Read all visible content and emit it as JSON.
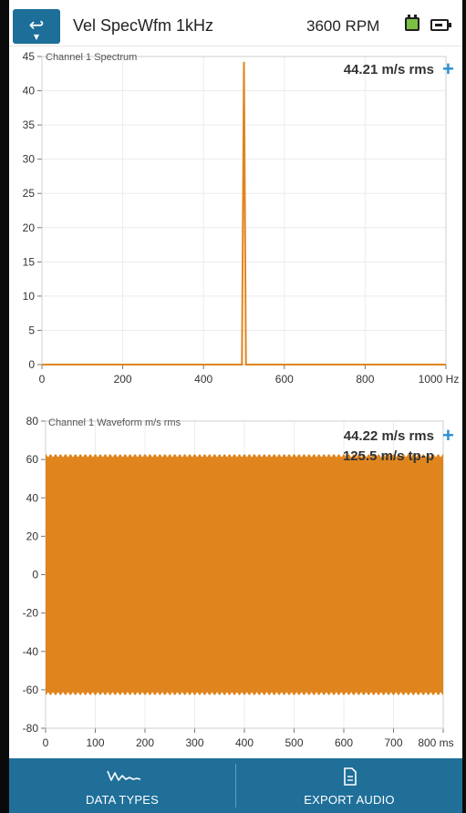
{
  "header": {
    "back_label": "↩",
    "title": "Vel SpecWfm 1kHz",
    "rpm": "3600 RPM",
    "battery_color": "#7bc043"
  },
  "spectrum": {
    "title": "Channel 1 Spectrum",
    "readout": "44.21 m/s rms",
    "add_label": "+",
    "x_unit": "Hz",
    "y_ticks": [
      "45",
      "40",
      "35",
      "30",
      "25",
      "20",
      "15",
      "10",
      "5",
      "0"
    ],
    "x_ticks": [
      "0",
      "200",
      "400",
      "600",
      "800",
      "1000 Hz"
    ]
  },
  "waveform": {
    "title": "Channel 1 Waveform m/s rms",
    "readout_rms": "44.22 m/s rms",
    "readout_tp": "125.5 m/s tp-p",
    "add_label": "+",
    "y_ticks": [
      "80",
      "60",
      "40",
      "20",
      "0",
      "-20",
      "-40",
      "-60",
      "-80"
    ],
    "x_ticks": [
      "0",
      "100",
      "200",
      "300",
      "400",
      "500",
      "600",
      "700",
      "800 ms"
    ]
  },
  "tabs": {
    "data_types": "DATA TYPES",
    "export_audio": "EXPORT AUDIO"
  },
  "colors": {
    "accent": "#1f6f99",
    "trace": "#e0851e",
    "plus": "#2a8fd0"
  },
  "chart_data": [
    {
      "type": "line",
      "title": "Channel 1 Spectrum",
      "xlabel": "Hz",
      "ylabel": "",
      "xlim": [
        0,
        1000
      ],
      "ylim": [
        0,
        45
      ],
      "grid": true,
      "series": [
        {
          "x": [
            0,
            495,
            500,
            505,
            1000
          ],
          "y": [
            0,
            0,
            44.21,
            0,
            0
          ]
        }
      ],
      "annotations": [
        "44.21 m/s rms"
      ]
    },
    {
      "type": "line",
      "title": "Channel 1 Waveform m/s rms",
      "xlabel": "ms",
      "ylabel": "",
      "xlim": [
        0,
        800
      ],
      "ylim": [
        -80,
        80
      ],
      "grid": true,
      "signal": {
        "frequency_hz": 500,
        "amplitude_peak": 62.75,
        "envelope_ripple": 2,
        "envelope_period_ms": 10
      },
      "annotations": [
        "44.22 m/s rms",
        "125.5 m/s tp-p"
      ]
    }
  ]
}
